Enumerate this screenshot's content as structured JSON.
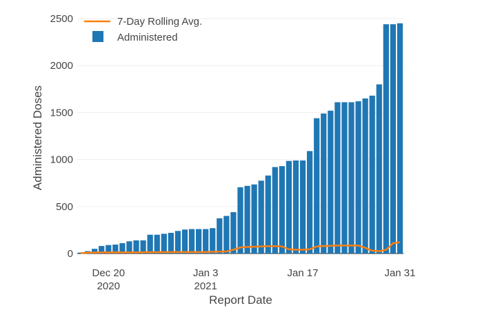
{
  "chart_data": {
    "type": "bar",
    "xlabel": "Report Date",
    "ylabel": "Administered Doses",
    "ylim": [
      0,
      2500
    ],
    "yticks": [
      0,
      500,
      1000,
      1500,
      2000,
      2500
    ],
    "yticks_text": [
      "0",
      "500",
      "1000",
      "1500",
      "2000",
      "2500"
    ],
    "xticks": [
      {
        "date": "2020-12-20",
        "lines": [
          "Dec 20",
          "2020"
        ]
      },
      {
        "date": "2021-01-03",
        "lines": [
          "Jan 3",
          "2021"
        ]
      },
      {
        "date": "2021-01-17",
        "lines": [
          "Jan 17"
        ]
      },
      {
        "date": "2021-01-31",
        "lines": [
          "Jan 31"
        ]
      }
    ],
    "legend": {
      "position": "top-left"
    },
    "grid": {
      "y": true,
      "x": false
    },
    "x": [
      "2020-12-16",
      "2020-12-17",
      "2020-12-18",
      "2020-12-19",
      "2020-12-20",
      "2020-12-21",
      "2020-12-22",
      "2020-12-23",
      "2020-12-24",
      "2020-12-25",
      "2020-12-26",
      "2020-12-27",
      "2020-12-28",
      "2020-12-29",
      "2020-12-30",
      "2020-12-31",
      "2021-01-01",
      "2021-01-02",
      "2021-01-03",
      "2021-01-04",
      "2021-01-05",
      "2021-01-06",
      "2021-01-07",
      "2021-01-08",
      "2021-01-09",
      "2021-01-10",
      "2021-01-11",
      "2021-01-12",
      "2021-01-13",
      "2021-01-14",
      "2021-01-15",
      "2021-01-16",
      "2021-01-17",
      "2021-01-18",
      "2021-01-19",
      "2021-01-20",
      "2021-01-21",
      "2021-01-22",
      "2021-01-23",
      "2021-01-24",
      "2021-01-25",
      "2021-01-26",
      "2021-01-27",
      "2021-01-28",
      "2021-01-29",
      "2021-01-30",
      "2021-01-31"
    ],
    "series": [
      {
        "name": "Administered",
        "type": "bar",
        "color": "#1f77b4",
        "values": [
          10,
          25,
          50,
          80,
          90,
          95,
          110,
          130,
          140,
          140,
          200,
          200,
          210,
          220,
          240,
          255,
          260,
          260,
          260,
          270,
          375,
          400,
          440,
          705,
          720,
          735,
          775,
          830,
          920,
          930,
          985,
          990,
          990,
          1090,
          1440,
          1490,
          1520,
          1610,
          1610,
          1610,
          1620,
          1650,
          1680,
          1800,
          2440,
          2440,
          2450
        ]
      },
      {
        "name": "7-Day Rolling Avg.",
        "type": "line",
        "color": "#ff7f0e",
        "values": [
          5,
          8,
          10,
          12,
          12,
          12,
          12,
          12,
          12,
          13,
          14,
          15,
          15,
          16,
          16,
          16,
          16,
          16,
          16,
          18,
          20,
          22,
          40,
          65,
          70,
          72,
          75,
          78,
          78,
          75,
          45,
          40,
          40,
          45,
          75,
          80,
          82,
          85,
          85,
          85,
          85,
          60,
          30,
          25,
          40,
          110,
          120
        ]
      }
    ]
  }
}
